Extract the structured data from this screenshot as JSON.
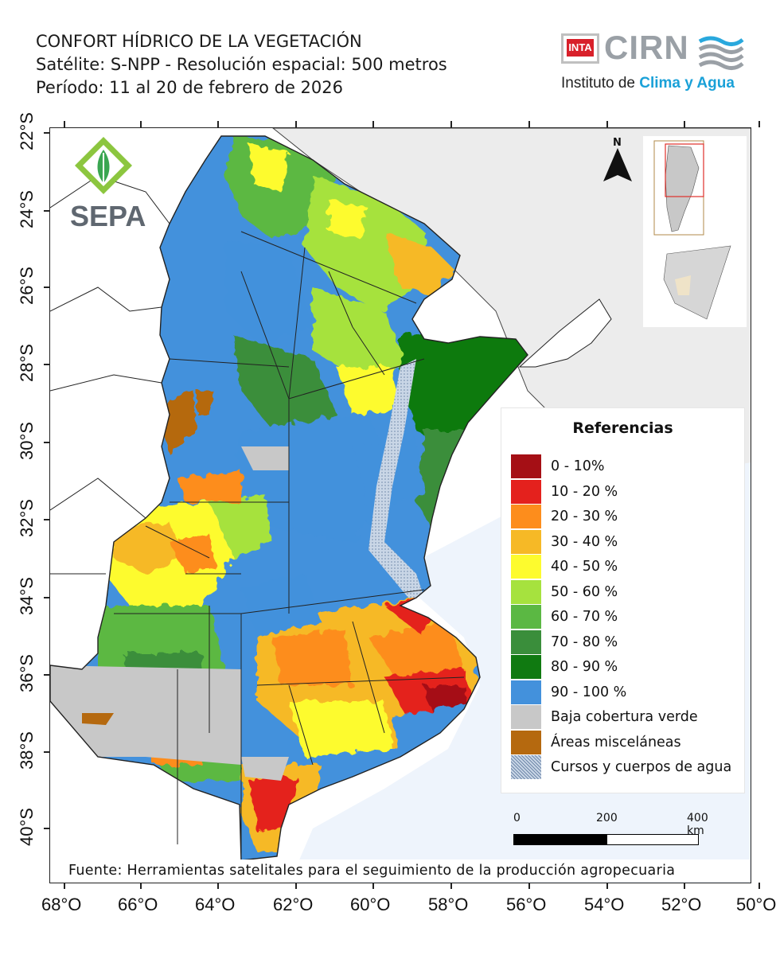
{
  "header": {
    "title": "CONFORT HÍDRICO DE LA VEGETACIÓN",
    "satellite": "Satélite: S-NPP - Resolución espacial: 500 metros",
    "period": "Período: 11 al 20 de febrero de 2026"
  },
  "brand": {
    "inta": "INTA",
    "cirn": "CIRN",
    "institute_prefix": "Instituto de ",
    "institute_highlight": "Clima y Agua"
  },
  "sepa": {
    "label": "SEPA"
  },
  "north_arrow": {
    "label": "N"
  },
  "axes": {
    "x_ticks": [
      "68°O",
      "66°O",
      "64°O",
      "62°O",
      "60°O",
      "58°O",
      "56°O",
      "54°O",
      "52°O",
      "50°O"
    ],
    "y_ticks": [
      "22°S",
      "24°S",
      "26°S",
      "28°S",
      "30°S",
      "32°S",
      "34°S",
      "36°S",
      "38°S",
      "40°S"
    ]
  },
  "legend": {
    "title": "Referencias",
    "items": [
      {
        "label": "0 - 10%",
        "color": "#a50f15"
      },
      {
        "label": "10 - 20 %",
        "color": "#e4211d"
      },
      {
        "label": "20 - 30 %",
        "color": "#fd8d1c"
      },
      {
        "label": "30 - 40 %",
        "color": "#f6b926"
      },
      {
        "label": "40 - 50 %",
        "color": "#fdfb2e"
      },
      {
        "label": "50 - 60 %",
        "color": "#a6e23e"
      },
      {
        "label": "60 - 70 %",
        "color": "#5bb843"
      },
      {
        "label": "70 - 80 %",
        "color": "#3a8e3b"
      },
      {
        "label": "80 - 90 %",
        "color": "#107a11"
      },
      {
        "label": "90 - 100 %",
        "color": "#4391dc"
      },
      {
        "label": "Baja cobertura verde",
        "color": "#c8c8c8"
      },
      {
        "label": "Áreas misceláneas",
        "color": "#b5690f"
      },
      {
        "label": "Cursos y cuerpos de agua",
        "color": "#8fa8c8"
      }
    ]
  },
  "scale": {
    "labels": [
      "0",
      "200",
      "400 km"
    ]
  },
  "source": "Fuente: Herramientas satelitales para el seguimiento de la producción agropecuaria"
}
